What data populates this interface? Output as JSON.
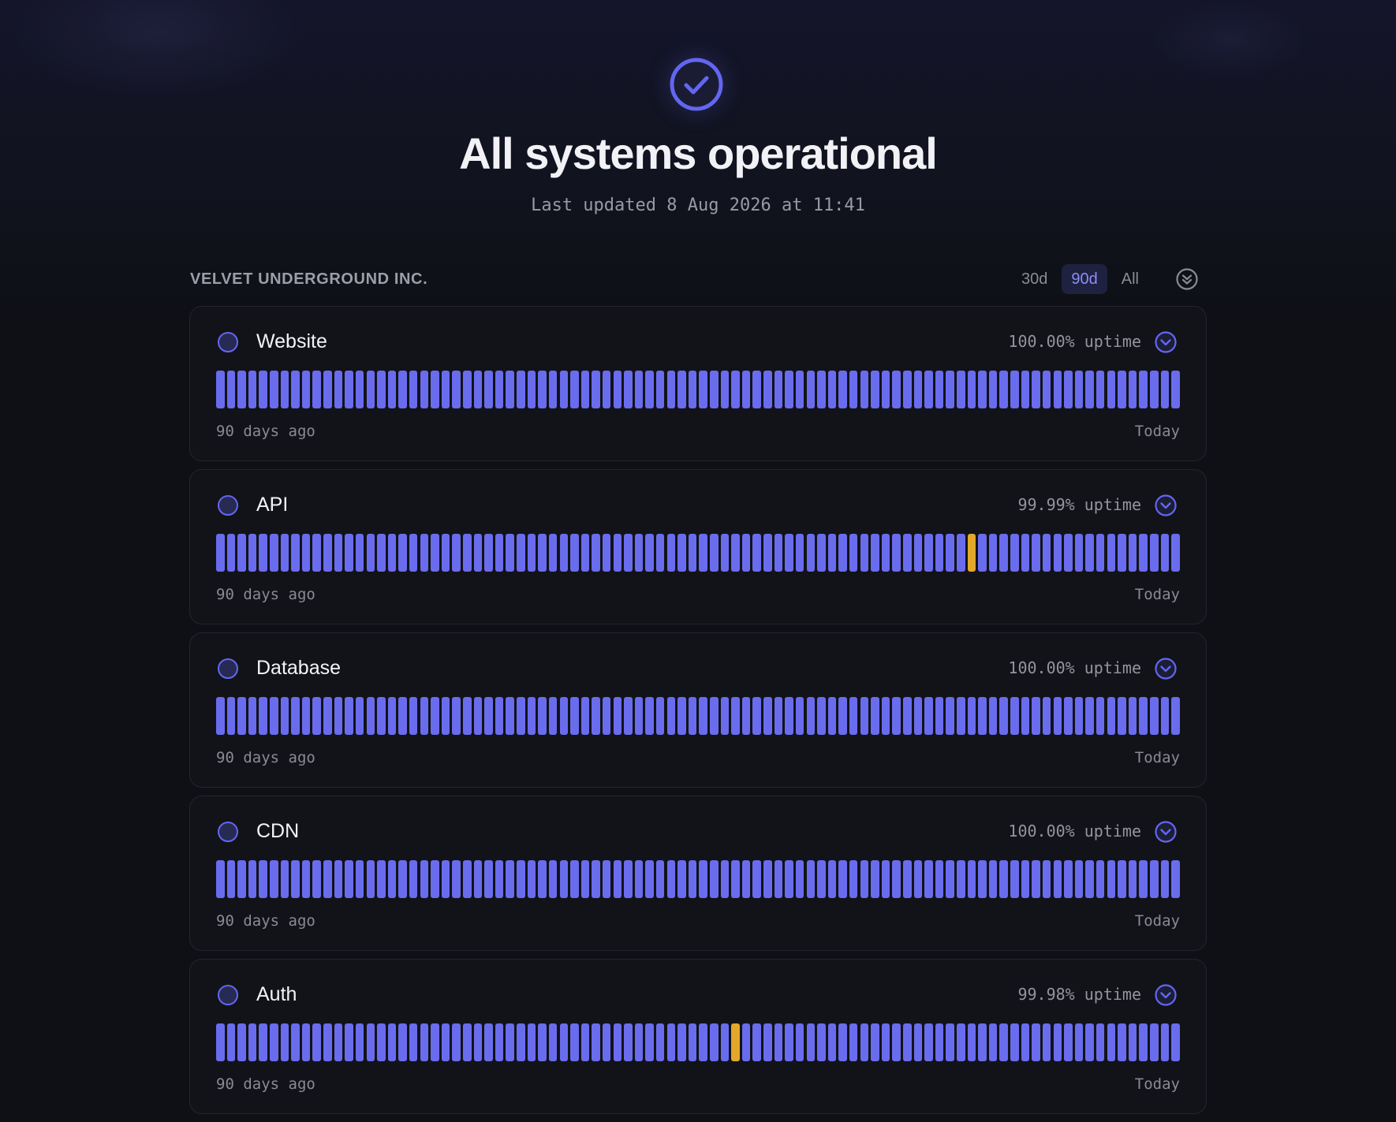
{
  "header": {
    "status_icon": "check-circle-icon",
    "title": "All systems operational",
    "last_updated": "Last updated 8 Aug 2026 at 11:41"
  },
  "org": {
    "name": "VELVET UNDERGROUND INC."
  },
  "range_tabs": [
    {
      "label": "30d",
      "active": false
    },
    {
      "label": "90d",
      "active": true
    },
    {
      "label": "All",
      "active": false
    }
  ],
  "colors": {
    "accent": "#6366f1",
    "bar_operational": "#6a6cee",
    "bar_degraded": "#e2a82a",
    "background": "#0e1015",
    "card": "#121318"
  },
  "services": [
    {
      "name": "Website",
      "uptime": "100.00% uptime",
      "start_label": "90 days ago",
      "end_label": "Today",
      "days": 90,
      "degraded_days": []
    },
    {
      "name": "API",
      "uptime": "99.99% uptime",
      "start_label": "90 days ago",
      "end_label": "Today",
      "days": 90,
      "degraded_days": [
        70
      ]
    },
    {
      "name": "Database",
      "uptime": "100.00% uptime",
      "start_label": "90 days ago",
      "end_label": "Today",
      "days": 90,
      "degraded_days": []
    },
    {
      "name": "CDN",
      "uptime": "100.00% uptime",
      "start_label": "90 days ago",
      "end_label": "Today",
      "days": 90,
      "degraded_days": []
    },
    {
      "name": "Auth",
      "uptime": "99.98% uptime",
      "start_label": "90 days ago",
      "end_label": "Today",
      "days": 90,
      "degraded_days": [
        48
      ]
    }
  ]
}
